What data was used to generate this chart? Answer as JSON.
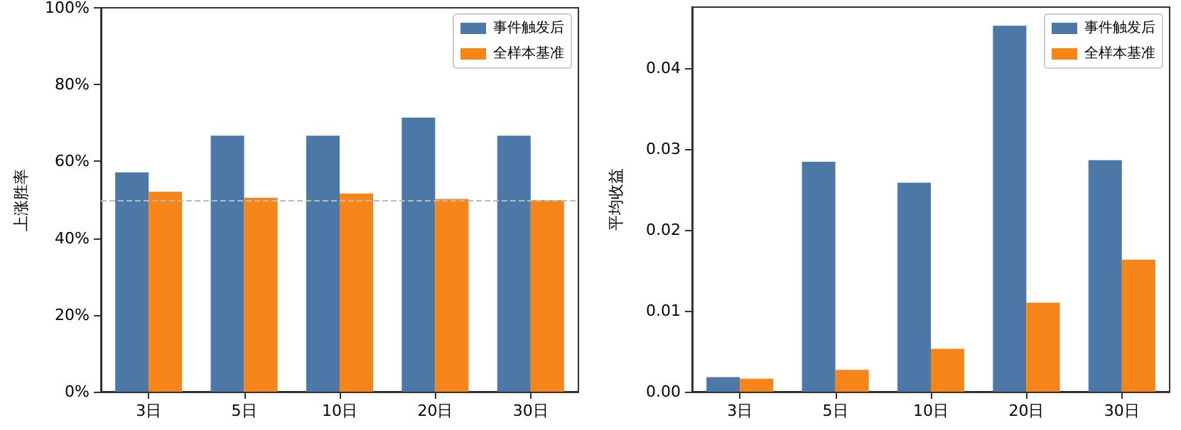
{
  "chart_data": [
    {
      "type": "bar",
      "ylabel": "上涨胜率",
      "categories": [
        "3日",
        "5日",
        "10日",
        "20日",
        "30日"
      ],
      "series": [
        {
          "name": "事件触发后",
          "color": "#4c78a8",
          "values": [
            57.1,
            66.7,
            66.7,
            71.4,
            66.7
          ]
        },
        {
          "name": "全样本基准",
          "color": "#f58518",
          "values": [
            52.1,
            50.5,
            51.6,
            50.2,
            49.9
          ]
        }
      ],
      "ylim": [
        0,
        100
      ],
      "yticks": [
        {
          "value": 0,
          "label": "0%"
        },
        {
          "value": 20,
          "label": "20%"
        },
        {
          "value": 40,
          "label": "40%"
        },
        {
          "value": 60,
          "label": "60%"
        },
        {
          "value": 80,
          "label": "80%"
        },
        {
          "value": 100,
          "label": "100%"
        }
      ],
      "ref_lines": [
        {
          "axis": "y",
          "value": 50,
          "color": "#bbbbbb",
          "line_style": "dashed"
        }
      ],
      "legend": "top right",
      "grid": false
    },
    {
      "type": "bar",
      "ylabel": "平均收益",
      "categories": [
        "3日",
        "5日",
        "10日",
        "20日",
        "30日"
      ],
      "series": [
        {
          "name": "事件触发后",
          "color": "#4c78a8",
          "values": [
            0.0018,
            0.0284,
            0.0258,
            0.0452,
            0.0286
          ]
        },
        {
          "name": "全样本基准",
          "color": "#f58518",
          "values": [
            0.0016,
            0.0027,
            0.0053,
            0.011,
            0.0163
          ]
        }
      ],
      "ylim": [
        0,
        0.0475
      ],
      "yticks": [
        {
          "value": 0,
          "label": "0.00"
        },
        {
          "value": 0.01,
          "label": "0.01"
        },
        {
          "value": 0.02,
          "label": "0.02"
        },
        {
          "value": 0.03,
          "label": "0.03"
        },
        {
          "value": 0.04,
          "label": "0.04"
        }
      ],
      "legend": "top right",
      "grid": false
    }
  ]
}
